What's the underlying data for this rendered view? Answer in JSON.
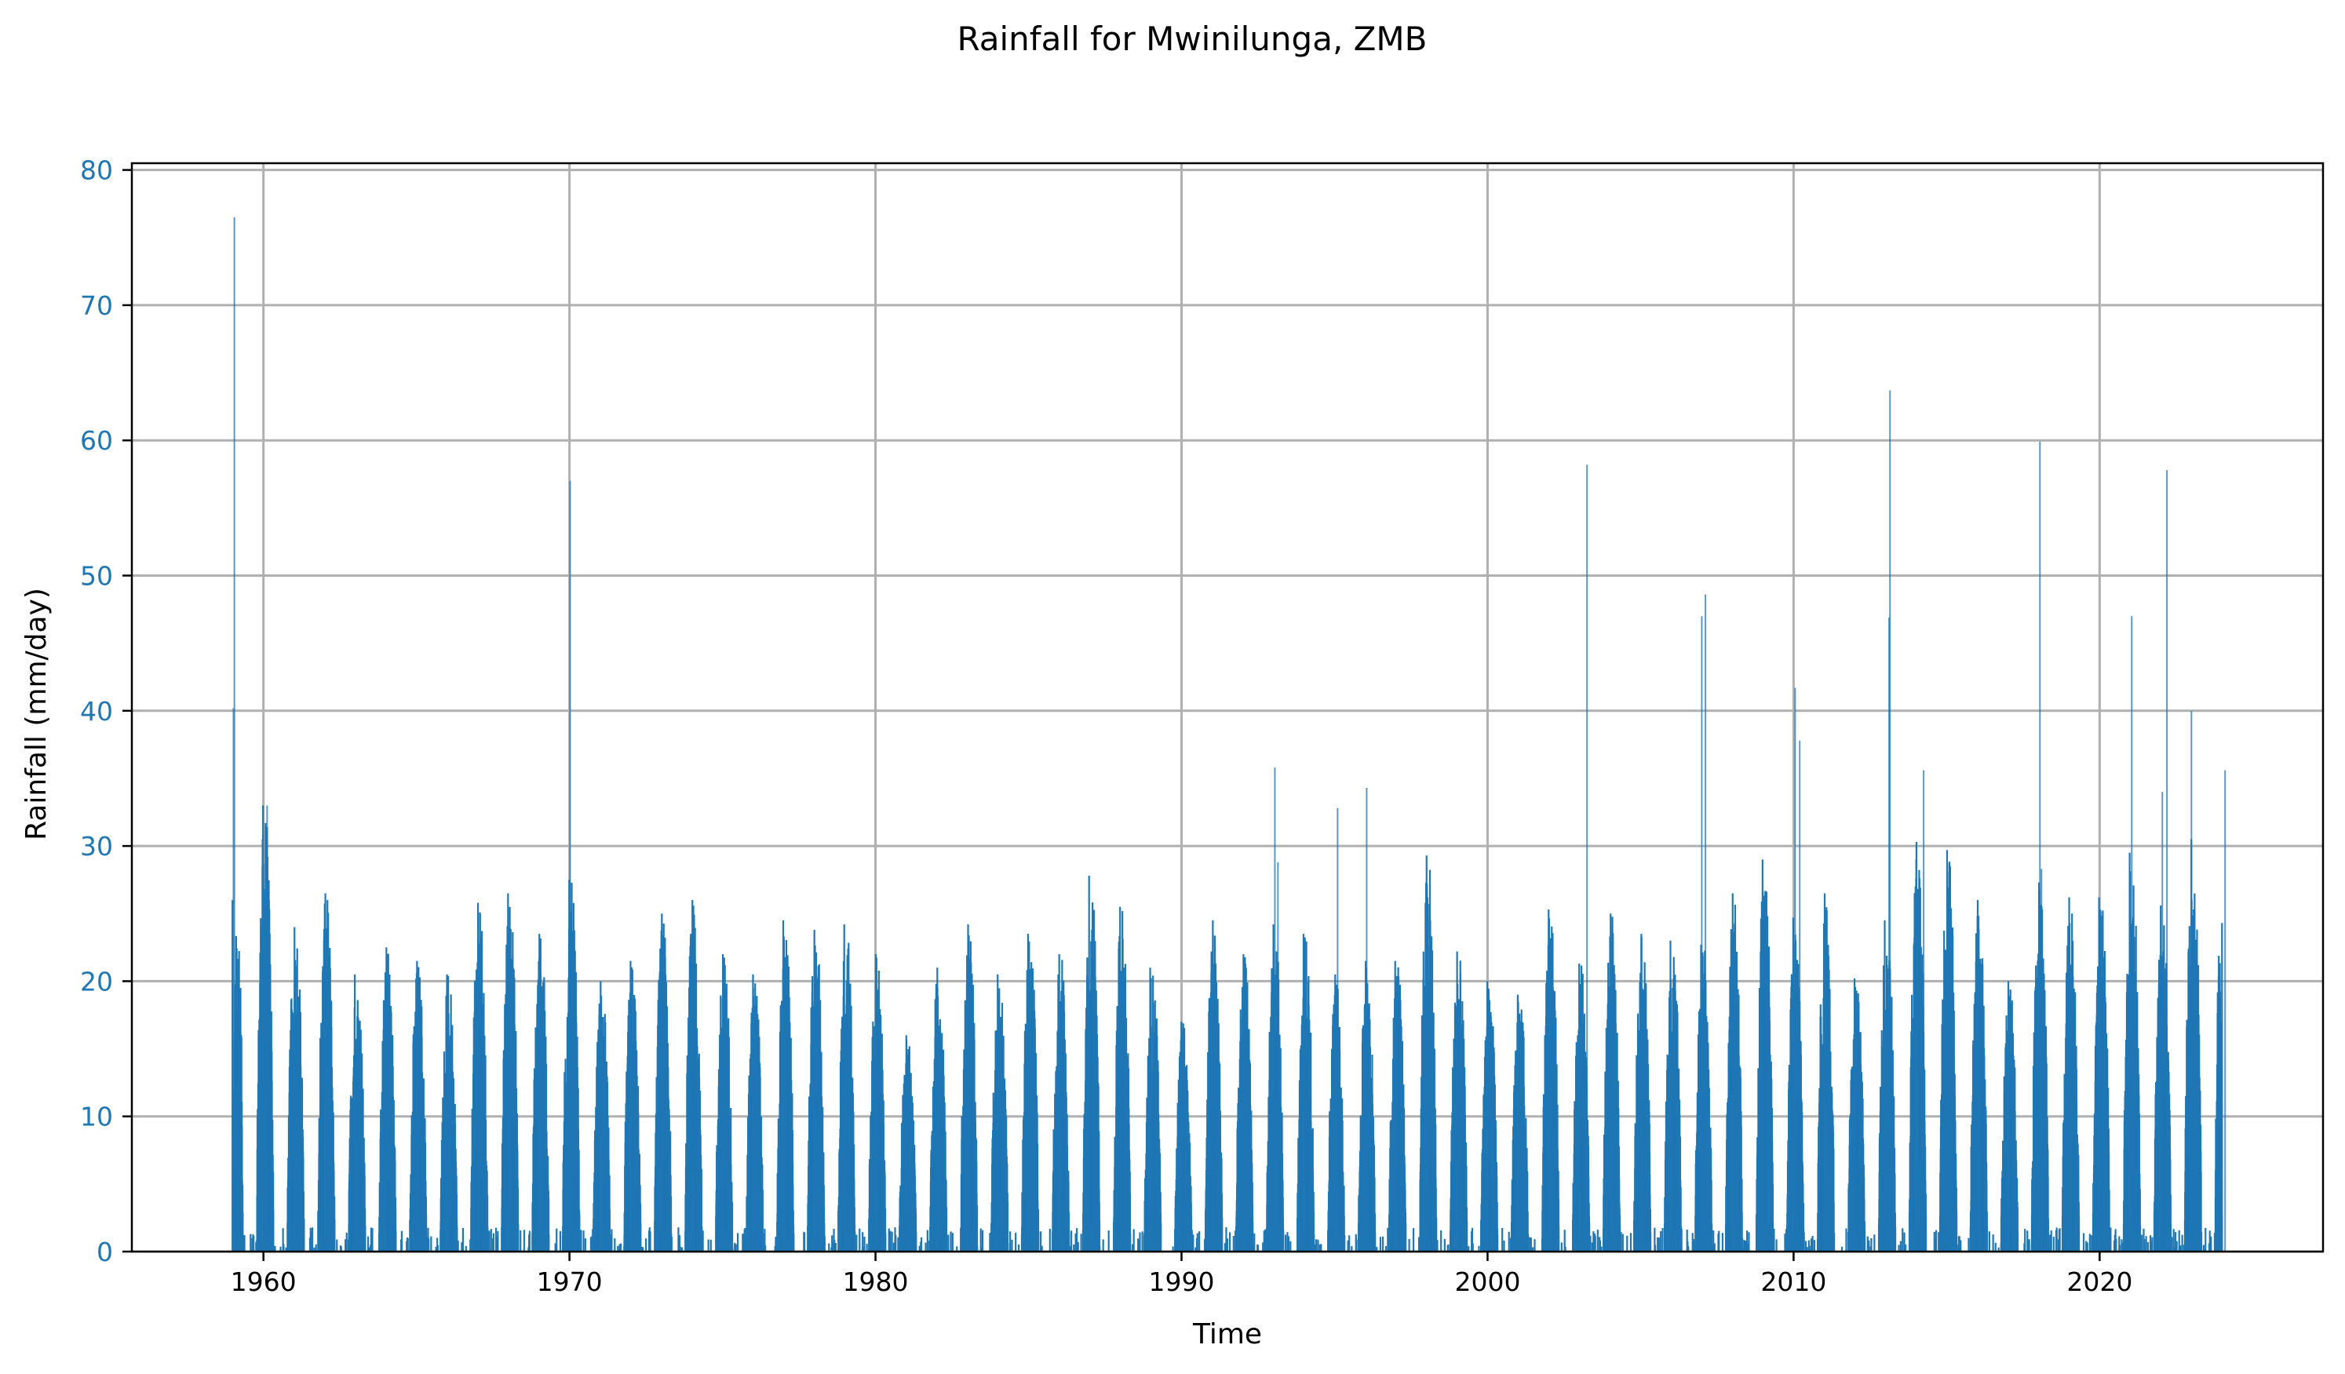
{
  "chart_data": {
    "type": "bar",
    "title": "Rainfall for Mwinilunga, ZMB",
    "xlabel": "Time",
    "ylabel": "Rainfall (mm/day)",
    "xlim": [
      1955.7,
      2027.3
    ],
    "ylim": [
      0,
      80.5
    ],
    "grid": true,
    "series_color": "#1f77b4",
    "ytick_color": "#1f77b4",
    "xticks": [
      1960,
      1970,
      1980,
      1990,
      2000,
      2010,
      2020
    ],
    "xtick_labels": [
      "1960",
      "1970",
      "1980",
      "1990",
      "2000",
      "2010",
      "2020"
    ],
    "yticks": [
      0,
      10,
      20,
      30,
      40,
      50,
      60,
      70,
      80
    ],
    "ytick_labels": [
      "0",
      "10",
      "20",
      "30",
      "40",
      "50",
      "60",
      "70",
      "80"
    ],
    "series": [
      {
        "values_note_key": "seasons",
        "data_start": 1959.0,
        "data_end": 2024.0,
        "season_peaks": [
          [
            1959,
            26.0
          ],
          [
            1960,
            33.0
          ],
          [
            1961,
            24.0
          ],
          [
            1962,
            26.5
          ],
          [
            1963,
            20.5
          ],
          [
            1964,
            22.5
          ],
          [
            1965,
            21.5
          ],
          [
            1966,
            20.5
          ],
          [
            1967,
            25.8
          ],
          [
            1968,
            26.5
          ],
          [
            1969,
            23.5
          ],
          [
            1970,
            27.5
          ],
          [
            1971,
            20.0
          ],
          [
            1972,
            21.5
          ],
          [
            1973,
            25.0
          ],
          [
            1974,
            26.0
          ],
          [
            1975,
            22.0
          ],
          [
            1976,
            20.5
          ],
          [
            1977,
            24.5
          ],
          [
            1978,
            23.8
          ],
          [
            1979,
            24.2
          ],
          [
            1980,
            22.0
          ],
          [
            1981,
            16.0
          ],
          [
            1982,
            21.0
          ],
          [
            1983,
            24.2
          ],
          [
            1984,
            20.5
          ],
          [
            1985,
            23.5
          ],
          [
            1986,
            22.0
          ],
          [
            1987,
            27.8
          ],
          [
            1988,
            25.5
          ],
          [
            1989,
            21.0
          ],
          [
            1990,
            17.0
          ],
          [
            1991,
            24.5
          ],
          [
            1992,
            22.0
          ],
          [
            1993,
            24.2
          ],
          [
            1994,
            23.5
          ],
          [
            1995,
            20.5
          ],
          [
            1996,
            21.5
          ],
          [
            1997,
            21.5
          ],
          [
            1998,
            29.3
          ],
          [
            1999,
            22.2
          ],
          [
            2000,
            20.0
          ],
          [
            2001,
            19.0
          ],
          [
            2002,
            25.3
          ],
          [
            2003,
            21.3
          ],
          [
            2004,
            25.0
          ],
          [
            2005,
            23.5
          ],
          [
            2006,
            23.0
          ],
          [
            2007,
            22.7
          ],
          [
            2008,
            26.5
          ],
          [
            2009,
            29.0
          ],
          [
            2010,
            24.7
          ],
          [
            2011,
            26.5
          ],
          [
            2012,
            20.2
          ],
          [
            2013,
            24.5
          ],
          [
            2014,
            30.3
          ],
          [
            2015,
            29.7
          ],
          [
            2016,
            26.0
          ],
          [
            2017,
            20.0
          ],
          [
            2018,
            27.3
          ],
          [
            2019,
            26.2
          ],
          [
            2020,
            26.2
          ],
          [
            2021,
            29.5
          ],
          [
            2022,
            25.6
          ],
          [
            2023,
            30.5
          ],
          [
            2024,
            24.3
          ]
        ],
        "spikes": [
          [
            1959.05,
            76.5
          ],
          [
            1959.02,
            40.2
          ],
          [
            1960.12,
            33.0
          ],
          [
            1970.02,
            57.0
          ],
          [
            1993.05,
            35.8
          ],
          [
            1993.15,
            28.8
          ],
          [
            1995.1,
            32.8
          ],
          [
            1996.05,
            34.3
          ],
          [
            2003.25,
            58.2
          ],
          [
            2007.0,
            47.0
          ],
          [
            2007.12,
            48.6
          ],
          [
            2010.05,
            41.7
          ],
          [
            2010.2,
            37.8
          ],
          [
            2013.15,
            63.7
          ],
          [
            2013.12,
            46.9
          ],
          [
            2014.25,
            35.6
          ],
          [
            2018.05,
            59.9
          ],
          [
            2018.1,
            28.3
          ],
          [
            2021.05,
            47.0
          ],
          [
            2022.05,
            34.0
          ],
          [
            2022.2,
            57.8
          ],
          [
            2023.0,
            40.0
          ],
          [
            2024.1,
            35.6
          ]
        ]
      }
    ]
  }
}
